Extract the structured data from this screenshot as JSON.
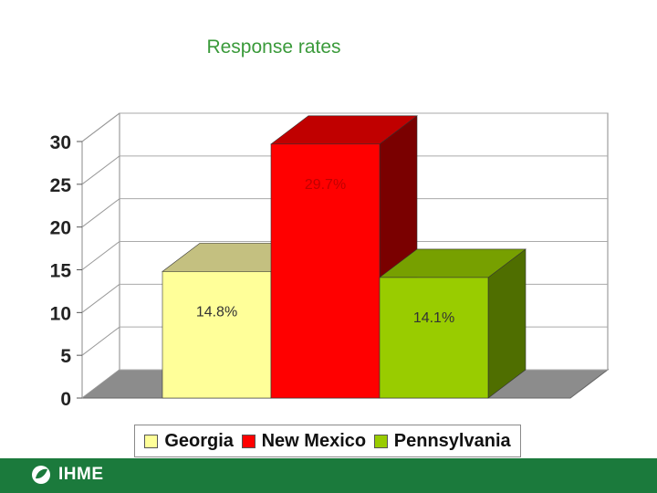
{
  "chart_data": {
    "type": "bar",
    "title": "Response rates",
    "categories": [
      "Georgia",
      "New Mexico",
      "Pennsylvania"
    ],
    "values": [
      14.8,
      29.7,
      14.1
    ],
    "data_labels": [
      "14.8%",
      "29.7%",
      "14.1%"
    ],
    "yticks": [
      "0",
      "5",
      "10",
      "15",
      "20",
      "25",
      "30"
    ],
    "ylim": [
      0,
      30
    ],
    "xlabel": "",
    "ylabel": "",
    "grid": true,
    "legend": "bottom",
    "colors": {
      "front": [
        "#ffff99",
        "#ff0000",
        "#99cc00"
      ],
      "top": [
        "#c4c080",
        "#c00000",
        "#77a000"
      ],
      "side": [
        "#9a9a60",
        "#7a0000",
        "#4f6e00"
      ],
      "label": [
        "#333333",
        "#c00000",
        "#333333"
      ]
    }
  },
  "legend": {
    "items": [
      {
        "label": "Georgia",
        "color": "#ffff99"
      },
      {
        "label": "New Mexico",
        "color": "#ff0000"
      },
      {
        "label": "Pennsylvania",
        "color": "#99cc00"
      }
    ]
  },
  "footer": {
    "logo_text": "IHME",
    "logo_icon": "ihme-leaf-icon",
    "background": "#1b7a3c"
  }
}
